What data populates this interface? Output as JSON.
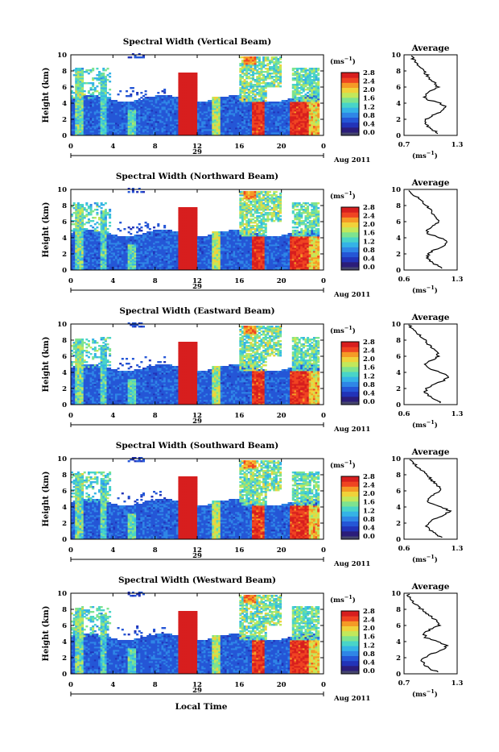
{
  "figure": {
    "date_label": "Aug 2011",
    "day_label": "29",
    "xlabel": "Local Time",
    "ylabel": "Height (km)",
    "cbar_unit": "(ms",
    "avg_unit": "(ms",
    "avg_title": "Average",
    "exp_sup": "−1",
    "unit_close": ")",
    "x_ticks": [
      "0",
      "4",
      "8",
      "12",
      "16",
      "20",
      "0"
    ],
    "y_ticks": [
      "0",
      "2",
      "4",
      "6",
      "8",
      "10"
    ],
    "cbar_ticks": [
      "0.0",
      "0.4",
      "0.8",
      "1.2",
      "1.6",
      "2.0",
      "2.4",
      "2.8"
    ],
    "colors": {
      "colormap": [
        "#2b1d7a",
        "#2233b8",
        "#2556d6",
        "#2f86e6",
        "#35b3e6",
        "#49d4c8",
        "#7ee38f",
        "#c2e85b",
        "#f0d23a",
        "#f59a26",
        "#ef4422",
        "#d71e1e"
      ],
      "line": "#000000",
      "under": "#46466e"
    }
  },
  "chart_data": [
    {
      "type": "heatmap",
      "title": "Spectral Width (Vertical Beam)",
      "x_range": [
        0,
        24
      ],
      "y_range": [
        0,
        10
      ],
      "value_range": [
        0.0,
        2.8
      ],
      "avg": {
        "xticks": [
          "0.7",
          "1.3"
        ],
        "xlim": [
          0.7,
          1.3
        ],
        "profile": [
          [
            0.2,
            1.1
          ],
          [
            0.5,
            1.05
          ],
          [
            1.0,
            0.98
          ],
          [
            1.5,
            0.93
          ],
          [
            2.0,
            0.94
          ],
          [
            2.5,
            1.02
          ],
          [
            3.0,
            1.12
          ],
          [
            3.5,
            1.18
          ],
          [
            4.0,
            1.1
          ],
          [
            4.5,
            0.95
          ],
          [
            5.0,
            0.93
          ],
          [
            5.5,
            1.0
          ],
          [
            6.0,
            1.08
          ],
          [
            6.5,
            1.05
          ],
          [
            7.0,
            1.0
          ],
          [
            7.5,
            0.96
          ],
          [
            8.0,
            0.92
          ],
          [
            8.5,
            0.88
          ],
          [
            9.0,
            0.85
          ],
          [
            9.5,
            0.8
          ],
          [
            10.0,
            0.78
          ]
        ]
      }
    },
    {
      "type": "heatmap",
      "title": "Spectral Width (Northward Beam)",
      "x_range": [
        0,
        24
      ],
      "y_range": [
        0,
        10
      ],
      "value_range": [
        0.0,
        2.8
      ],
      "avg": {
        "xticks": [
          "0.6",
          "1.3"
        ],
        "xlim": [
          0.6,
          1.3
        ],
        "profile": [
          [
            0.2,
            1.12
          ],
          [
            0.5,
            1.05
          ],
          [
            1.0,
            0.96
          ],
          [
            1.5,
            0.9
          ],
          [
            2.0,
            0.92
          ],
          [
            2.5,
            1.0
          ],
          [
            3.0,
            1.12
          ],
          [
            3.5,
            1.18
          ],
          [
            4.0,
            1.08
          ],
          [
            4.5,
            0.92
          ],
          [
            5.0,
            0.9
          ],
          [
            5.5,
            0.98
          ],
          [
            6.0,
            1.06
          ],
          [
            6.5,
            1.04
          ],
          [
            7.0,
            0.98
          ],
          [
            7.5,
            0.94
          ],
          [
            8.0,
            0.9
          ],
          [
            8.5,
            0.84
          ],
          [
            9.0,
            0.78
          ],
          [
            9.5,
            0.7
          ],
          [
            10.0,
            0.66
          ]
        ]
      }
    },
    {
      "type": "heatmap",
      "title": "Spectral Width (Eastward Beam)",
      "x_range": [
        0,
        24
      ],
      "y_range": [
        0,
        10
      ],
      "value_range": [
        0.0,
        2.8
      ],
      "avg": {
        "xticks": [
          "0.6",
          "1.3"
        ],
        "xlim": [
          0.6,
          1.3
        ],
        "profile": [
          [
            0.2,
            1.1
          ],
          [
            0.5,
            1.02
          ],
          [
            1.0,
            0.94
          ],
          [
            1.5,
            0.88
          ],
          [
            2.0,
            0.9
          ],
          [
            2.5,
            1.0
          ],
          [
            3.0,
            1.12
          ],
          [
            3.5,
            1.2
          ],
          [
            4.0,
            1.08
          ],
          [
            4.5,
            0.92
          ],
          [
            5.0,
            0.88
          ],
          [
            5.5,
            0.96
          ],
          [
            6.0,
            1.05
          ],
          [
            6.5,
            1.04
          ],
          [
            7.0,
            0.98
          ],
          [
            7.5,
            0.92
          ],
          [
            8.0,
            0.88
          ],
          [
            8.5,
            0.82
          ],
          [
            9.0,
            0.76
          ],
          [
            9.5,
            0.7
          ],
          [
            10.0,
            0.66
          ]
        ]
      }
    },
    {
      "type": "heatmap",
      "title": "Spectral Width (Southward Beam)",
      "x_range": [
        0,
        24
      ],
      "y_range": [
        0,
        10
      ],
      "value_range": [
        0.0,
        2.8
      ],
      "avg": {
        "xticks": [
          "0.6",
          "1.3"
        ],
        "xlim": [
          0.6,
          1.3
        ],
        "profile": [
          [
            0.2,
            1.12
          ],
          [
            0.5,
            1.04
          ],
          [
            1.0,
            0.96
          ],
          [
            1.5,
            0.9
          ],
          [
            2.0,
            0.91
          ],
          [
            2.5,
            1.0
          ],
          [
            3.0,
            1.14
          ],
          [
            3.5,
            1.2
          ],
          [
            4.0,
            1.1
          ],
          [
            4.5,
            0.94
          ],
          [
            5.0,
            0.9
          ],
          [
            5.5,
            0.98
          ],
          [
            6.0,
            1.08
          ],
          [
            6.5,
            1.06
          ],
          [
            7.0,
            1.0
          ],
          [
            7.5,
            0.95
          ],
          [
            8.0,
            0.9
          ],
          [
            8.5,
            0.84
          ],
          [
            9.0,
            0.78
          ],
          [
            9.5,
            0.72
          ],
          [
            10.0,
            0.68
          ]
        ]
      }
    },
    {
      "type": "heatmap",
      "title": "Spectral Width (Westward Beam)",
      "x_range": [
        0,
        24
      ],
      "y_range": [
        0,
        10
      ],
      "value_range": [
        0.0,
        2.8
      ],
      "avg": {
        "xticks": [
          "0.7",
          "1.3"
        ],
        "xlim": [
          0.7,
          1.3
        ],
        "profile": [
          [
            0.2,
            1.1
          ],
          [
            0.5,
            1.02
          ],
          [
            1.0,
            0.95
          ],
          [
            1.5,
            0.9
          ],
          [
            2.0,
            0.92
          ],
          [
            2.5,
            1.02
          ],
          [
            3.0,
            1.14
          ],
          [
            3.5,
            1.18
          ],
          [
            4.0,
            1.08
          ],
          [
            4.5,
            0.95
          ],
          [
            5.0,
            0.92
          ],
          [
            5.5,
            1.0
          ],
          [
            6.0,
            1.1
          ],
          [
            6.5,
            1.08
          ],
          [
            7.0,
            1.02
          ],
          [
            7.5,
            0.96
          ],
          [
            8.0,
            0.9
          ],
          [
            8.5,
            0.84
          ],
          [
            9.0,
            0.8
          ],
          [
            9.5,
            0.76
          ],
          [
            10.0,
            0.74
          ]
        ]
      }
    }
  ]
}
